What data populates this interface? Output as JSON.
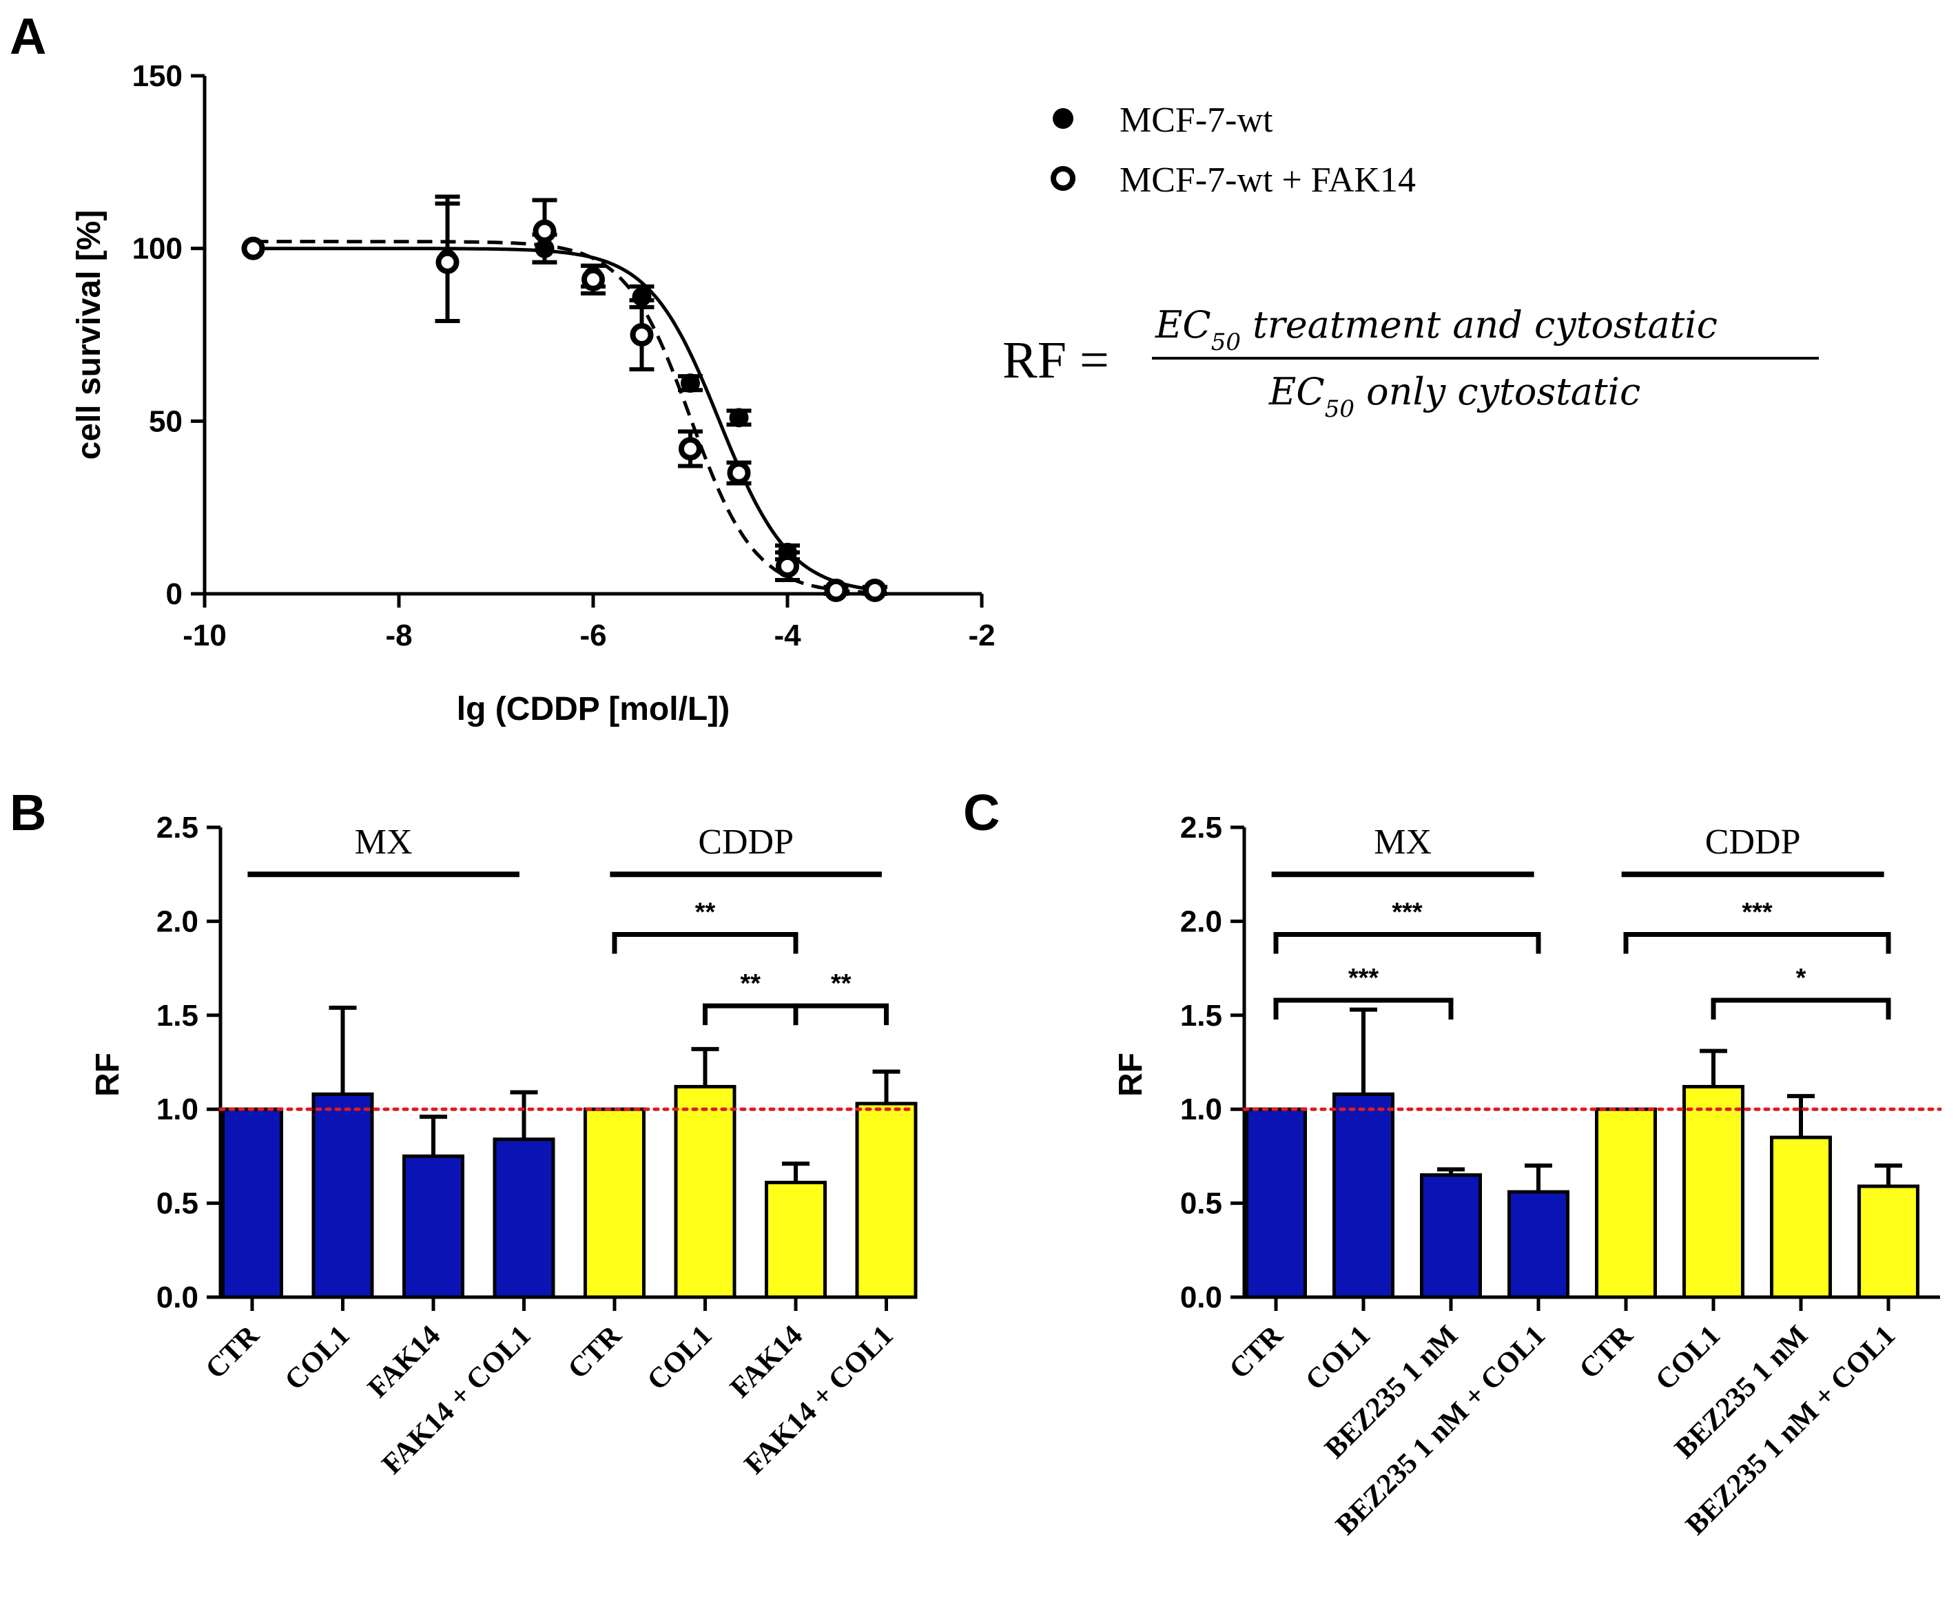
{
  "chart_data": [
    {
      "panel": "A",
      "type": "scatter",
      "xlabel": "lg (CDDP [mol/L])",
      "ylabel": "cell survival [%]",
      "xlim": [
        -10,
        -2
      ],
      "ylim": [
        0,
        150
      ],
      "xticks": [
        "-10",
        "-8",
        "-6",
        "-4",
        "-2"
      ],
      "yticks": [
        "0",
        "50",
        "100",
        "150"
      ],
      "series": [
        {
          "name": "MCF-7-wt",
          "marker": "filled",
          "line": "solid",
          "x": [
            -9.5,
            -7.5,
            -6.5,
            -6.0,
            -5.5,
            -5.0,
            -4.5,
            -4.0,
            -3.5,
            -3.1
          ],
          "y": [
            100,
            97,
            100,
            92,
            86,
            61,
            51,
            12,
            1,
            1
          ],
          "err": [
            0,
            18,
            4,
            3,
            3,
            2,
            2,
            2,
            1,
            1
          ],
          "fit": {
            "top": 100,
            "bottom": 0,
            "logEC50": -4.7,
            "hill": 1.2
          }
        },
        {
          "name": "MCF-7-wt + FAK14",
          "marker": "open",
          "line": "dashed",
          "x": [
            -9.5,
            -7.5,
            -6.5,
            -6.0,
            -5.5,
            -5.0,
            -4.5,
            -4.0,
            -3.5,
            -3.1
          ],
          "y": [
            100,
            96,
            105,
            91,
            75,
            42,
            35,
            8,
            1,
            1
          ],
          "err": [
            0,
            17,
            9,
            4,
            10,
            5,
            3,
            4,
            1,
            1
          ],
          "fit": {
            "top": 102,
            "bottom": 0,
            "logEC50": -5.0,
            "hill": 1.3
          }
        }
      ],
      "equation": {
        "lhs": "RF",
        "equals": "=",
        "num_base": "EC",
        "num_sub": "50",
        "num_text": " treatment and cytostatic",
        "den_base": "EC",
        "den_sub": "50",
        "den_text": " only cytostatic"
      }
    },
    {
      "panel": "B",
      "type": "bar",
      "ylabel": "RF",
      "ylim": [
        0,
        2.5
      ],
      "yticks": [
        "0.0",
        "0.5",
        "1.0",
        "1.5",
        "2.0",
        "2.5"
      ],
      "reference_line": 1.0,
      "groups": [
        "MX",
        "CDDP"
      ],
      "categories": [
        "CTR",
        "COL1",
        "FAK14",
        "FAK14 + COL1",
        "CTR",
        "COL1",
        "FAK14",
        "FAK14 + COL1"
      ],
      "values": [
        1.0,
        1.08,
        0.75,
        0.84,
        1.0,
        1.12,
        0.61,
        1.03
      ],
      "err": [
        0,
        0.46,
        0.21,
        0.25,
        0,
        0.2,
        0.1,
        0.17
      ],
      "bar_group": [
        0,
        0,
        0,
        0,
        1,
        1,
        1,
        1
      ],
      "significance": [
        {
          "from": 4,
          "to": 6,
          "label": "**",
          "y": 1.93
        },
        {
          "from": 5,
          "to": 6,
          "label": "**",
          "y": 1.55
        },
        {
          "from": 6,
          "to": 7,
          "label": "**",
          "y": 1.55
        }
      ]
    },
    {
      "panel": "C",
      "type": "bar",
      "ylabel": "RF",
      "ylim": [
        0,
        2.5
      ],
      "yticks": [
        "0.0",
        "0.5",
        "1.0",
        "1.5",
        "2.0",
        "2.5"
      ],
      "reference_line": 1.0,
      "groups": [
        "MX",
        "CDDP"
      ],
      "categories": [
        "CTR",
        "COL1",
        "BEZ235 1 nM",
        "BEZ235 1 nM + COL1",
        "CTR",
        "COL1",
        "BEZ235 1 nM",
        "BEZ235 1 nM + COL1"
      ],
      "values": [
        1.0,
        1.08,
        0.65,
        0.56,
        1.0,
        1.12,
        0.85,
        0.59
      ],
      "err": [
        0,
        0.45,
        0.03,
        0.14,
        0,
        0.19,
        0.22,
        0.11
      ],
      "bar_group": [
        0,
        0,
        0,
        0,
        1,
        1,
        1,
        1
      ],
      "significance": [
        {
          "from": 0,
          "to": 3,
          "label": "***",
          "y": 1.93
        },
        {
          "from": 0,
          "to": 2,
          "label": "***",
          "y": 1.58
        },
        {
          "from": 4,
          "to": 7,
          "label": "***",
          "y": 1.93
        },
        {
          "from": 5,
          "to": 7,
          "label": "*",
          "y": 1.58
        }
      ]
    }
  ],
  "colors": {
    "blue": "#0a14b4",
    "yellow": "#ffff1a",
    "ref_line": "#e0191e",
    "black": "#000000"
  }
}
